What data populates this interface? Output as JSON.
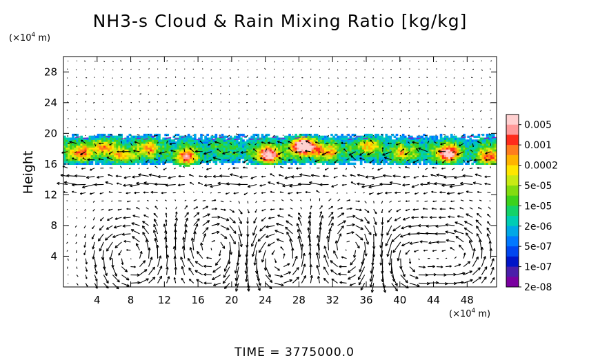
{
  "chart_data": {
    "type": "heatmap",
    "title": "NH3-s Cloud & Rain Mixing Ratio [kg/kg]",
    "ylabel": "Height",
    "xunit": {
      "prefix": "(×10",
      "exp": "4",
      "suffix": " m)"
    },
    "yunit": {
      "prefix": "(×10",
      "exp": "4",
      "suffix": " m)"
    },
    "xlim": [
      0,
      51.5
    ],
    "ylim": [
      0,
      30
    ],
    "xticks": [
      4,
      8,
      12,
      16,
      20,
      24,
      28,
      32,
      36,
      40,
      44,
      48
    ],
    "yticks": [
      4,
      8,
      12,
      16,
      20,
      24,
      28
    ],
    "xtick_labels": [
      "4",
      "8",
      "12",
      "16",
      "20",
      "24",
      "28",
      "32",
      "36",
      "40",
      "44",
      "48"
    ],
    "ytick_labels": [
      "4",
      "8",
      "12",
      "16",
      "20",
      "24",
      "28"
    ],
    "cloud_layer": {
      "bottom": 16,
      "top": 19.5
    },
    "cloud_cores": [
      {
        "x": 2,
        "y": 17.3,
        "strength": 0.55
      },
      {
        "x": 4.5,
        "y": 18.2,
        "strength": 0.45
      },
      {
        "x": 7,
        "y": 17,
        "strength": 0.5
      },
      {
        "x": 10,
        "y": 18,
        "strength": 0.4
      },
      {
        "x": 14.5,
        "y": 16.7,
        "strength": 0.65
      },
      {
        "x": 24.3,
        "y": 17,
        "strength": 0.8
      },
      {
        "x": 28.5,
        "y": 18.3,
        "strength": 0.95
      },
      {
        "x": 31,
        "y": 17.5,
        "strength": 0.5
      },
      {
        "x": 36,
        "y": 18.3,
        "strength": 0.45
      },
      {
        "x": 40,
        "y": 17.3,
        "strength": 0.4
      },
      {
        "x": 45.5,
        "y": 17.2,
        "strength": 0.8
      },
      {
        "x": 50.5,
        "y": 16.7,
        "strength": 0.6
      }
    ],
    "circulation_cells": [
      {
        "x": 8,
        "y": 4,
        "sign": 1
      },
      {
        "x": 18,
        "y": 5,
        "sign": -1
      },
      {
        "x": 25.5,
        "y": 4,
        "sign": 1
      },
      {
        "x": 34,
        "y": 5,
        "sign": -1
      },
      {
        "x": 41,
        "y": 4,
        "sign": 1
      },
      {
        "x": 47,
        "y": 4,
        "sign": 1
      }
    ],
    "colorbar": {
      "labels": [
        "0.005",
        "0.001",
        "0.0002",
        "5e-05",
        "1e-05",
        "2e-06",
        "5e-07",
        "1e-07",
        "2e-08"
      ],
      "colors": [
        "#ffd0d0",
        "#ff9a9a",
        "#ff2c1c",
        "#ff7d1e",
        "#ffb400",
        "#ffe600",
        "#c8ea14",
        "#82dc10",
        "#3cd21c",
        "#14d269",
        "#00cdb4",
        "#00a8e6",
        "#0078ff",
        "#0046f0",
        "#0014c8",
        "#4a1eaa",
        "#7a00a0"
      ]
    },
    "time_label": "TIME",
    "time_value": "3775000.0"
  }
}
